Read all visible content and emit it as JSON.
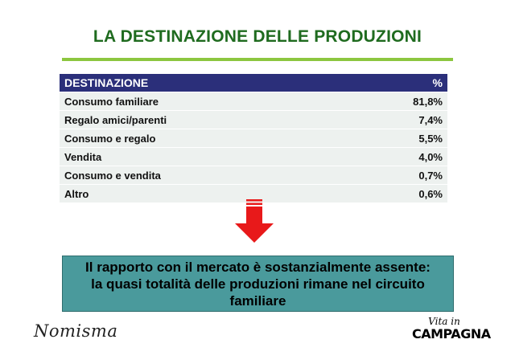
{
  "title": "LA DESTINAZIONE DELLE PRODUZIONI",
  "table": {
    "header": {
      "label": "DESTINAZIONE",
      "value": "%"
    },
    "rows": [
      {
        "label": "Consumo familiare",
        "value": "81,8%"
      },
      {
        "label": "Regalo amici/parenti",
        "value": "7,4%"
      },
      {
        "label": "Consumo e regalo",
        "value": "5,5%"
      },
      {
        "label": "Vendita",
        "value": "4,0%"
      },
      {
        "label": "Consumo e vendita",
        "value": "0,7%"
      },
      {
        "label": "Altro",
        "value": "0,6%"
      }
    ]
  },
  "callout": {
    "line1": "Il rapporto con il mercato è sostanzialmente assente:",
    "line2": "la quasi totalità delle produzioni rimane nel circuito",
    "line3": "familiare"
  },
  "logos": {
    "left": "Nomisma",
    "right_top": "Vita in",
    "right_bottom": "CAMPAGNA"
  },
  "colors": {
    "title": "#1f6b1f",
    "rule": "#8cc63f",
    "table_header": "#2b2f7a",
    "row_bg": "#edf1ef",
    "arrow": "#e8191a",
    "callout_bg": "#4a9a9c"
  },
  "icons": {
    "arrow": "down-arrow-icon"
  }
}
